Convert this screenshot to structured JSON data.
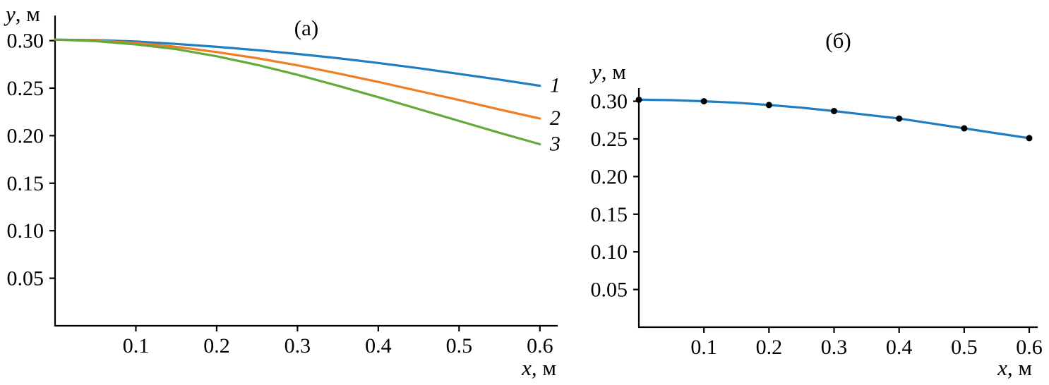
{
  "figure": {
    "background": "#ffffff",
    "panel_a_title": "(а)",
    "panel_b_title": "(б)"
  },
  "chart_data": [
    {
      "type": "line",
      "title": "(а)",
      "xlabel_var": "x",
      "xlabel_unit": ", м",
      "ylabel_var": "y",
      "ylabel_unit": ", м",
      "xlim": [
        0,
        0.622
      ],
      "ylim": [
        0,
        0.3264
      ],
      "grid": false,
      "legend_position": "labels-at-line-ends",
      "xticks": [
        0.1,
        0.2,
        0.3,
        0.4,
        0.5,
        0.6
      ],
      "xtick_labels": [
        "0.1",
        "0.2",
        "0.3",
        "0.4",
        "0.5",
        "0.6"
      ],
      "yticks": [
        0.05,
        0.1,
        0.15,
        0.2,
        0.25,
        0.3
      ],
      "ytick_labels": [
        "0.05",
        "0.10",
        "0.15",
        "0.20",
        "0.25",
        "0.30"
      ],
      "x": [
        0,
        0.05,
        0.1,
        0.15,
        0.2,
        0.25,
        0.3,
        0.35,
        0.4,
        0.45,
        0.5,
        0.55,
        0.6
      ],
      "series": [
        {
          "name": "1",
          "color": "#1f7ec2",
          "values": [
            0.301,
            0.3005,
            0.299,
            0.2965,
            0.2935,
            0.29,
            0.286,
            0.2815,
            0.2765,
            0.271,
            0.265,
            0.259,
            0.2525
          ]
        },
        {
          "name": "2",
          "color": "#ef7d21",
          "values": [
            0.301,
            0.3,
            0.2975,
            0.2935,
            0.288,
            0.2815,
            0.274,
            0.2655,
            0.2565,
            0.247,
            0.2375,
            0.2275,
            0.218
          ]
        },
        {
          "name": "3",
          "color": "#64a93c",
          "values": [
            0.301,
            0.2995,
            0.296,
            0.291,
            0.2835,
            0.2745,
            0.264,
            0.2525,
            0.2405,
            0.228,
            0.2155,
            0.203,
            0.191
          ]
        }
      ]
    },
    {
      "type": "line",
      "title": "(б)",
      "xlabel_var": "x",
      "xlabel_unit": ", м",
      "ylabel_var": "y",
      "ylabel_unit": ", м",
      "xlim": [
        0,
        0.613
      ],
      "ylim": [
        0,
        0.3174
      ],
      "grid": false,
      "legend_position": "none",
      "xticks": [
        0.1,
        0.2,
        0.3,
        0.4,
        0.5,
        0.6
      ],
      "xtick_labels": [
        "0.1",
        "0.2",
        "0.3",
        "0.4",
        "0.5",
        "0.6"
      ],
      "yticks": [
        0.05,
        0.1,
        0.15,
        0.2,
        0.25,
        0.3
      ],
      "ytick_labels": [
        "0.05",
        "0.10",
        "0.15",
        "0.20",
        "0.25",
        "0.30"
      ],
      "x": [
        0,
        0.05,
        0.1,
        0.15,
        0.2,
        0.25,
        0.3,
        0.35,
        0.4,
        0.45,
        0.5,
        0.55,
        0.6
      ],
      "series": [
        {
          "name": "",
          "color": "#1f7ec2",
          "values": [
            0.302,
            0.3015,
            0.3,
            0.298,
            0.295,
            0.2915,
            0.287,
            0.282,
            0.277,
            0.2705,
            0.264,
            0.2575,
            0.251
          ],
          "markers": {
            "shape": "circle",
            "color": "#000000",
            "x": [
              0,
              0.1,
              0.2,
              0.3,
              0.4,
              0.5,
              0.6
            ],
            "y": [
              0.302,
              0.3,
              0.295,
              0.287,
              0.277,
              0.264,
              0.251
            ]
          }
        }
      ]
    }
  ]
}
